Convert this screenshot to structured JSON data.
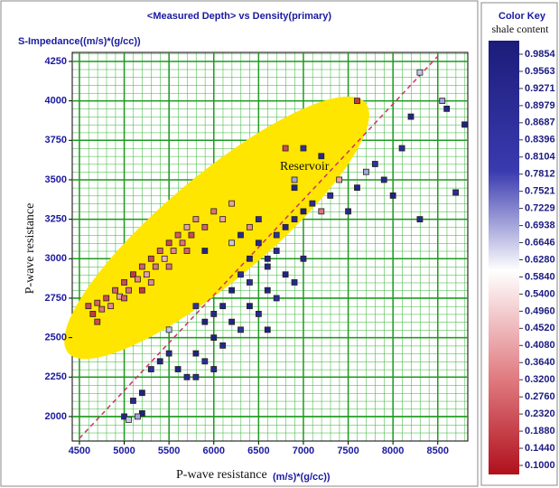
{
  "chart_data": {
    "type": "scatter",
    "title": "<Measured Depth> vs Density(primary)",
    "y_unit_label": "S-Impedance((m/s)*(g/cc))",
    "ylabel": "P-wave resistance",
    "xlabel": "P-wave resistance",
    "x_unit_label": "(m/s)*(g/cc))",
    "annotation": "Reservoir",
    "xlim": [
      4420,
      8835
    ],
    "ylim": [
      1845,
      4307
    ],
    "xticks": [
      4500,
      5000,
      5500,
      6000,
      6500,
      7000,
      7500,
      8000,
      8500
    ],
    "yticks": [
      2000,
      2250,
      2500,
      2750,
      3000,
      3250,
      3500,
      3750,
      4000,
      4250
    ],
    "grid": true,
    "x": [
      4600,
      4650,
      4700,
      4750,
      4800,
      4850,
      4900,
      4950,
      5000,
      5050,
      5100,
      5150,
      5200,
      5250,
      5300,
      5350,
      5400,
      5450,
      5500,
      5550,
      5600,
      5650,
      5700,
      5750,
      5800,
      5900,
      6000,
      6100,
      5200,
      5000,
      4700,
      5300,
      5500,
      5700,
      6200,
      6400,
      7200,
      6800,
      7600,
      7400,
      5600,
      5700,
      5800,
      5900,
      6000,
      6100,
      6200,
      6300,
      6400,
      6500,
      6600,
      6700,
      6800,
      6900,
      7000,
      6200,
      6300,
      6400,
      6500,
      6600,
      6700,
      6800,
      6900,
      7000,
      7100,
      6100,
      6000,
      5900,
      6400,
      6600,
      6700,
      5800,
      5500,
      5400,
      5300,
      5200,
      5100,
      5000,
      5200,
      7300,
      7500,
      7600,
      7800,
      7900,
      8000,
      8100,
      8200,
      8300,
      8600,
      8700,
      8800,
      7000,
      7200,
      6900,
      6500,
      6300,
      5900,
      6600,
      6000,
      5800,
      5050,
      5150,
      8300,
      8550,
      6900,
      5500,
      7700,
      6200
    ],
    "values": [
      2700,
      2650,
      2720,
      2680,
      2750,
      2700,
      2800,
      2760,
      2850,
      2800,
      2900,
      2870,
      2950,
      2900,
      3000,
      2950,
      3050,
      3000,
      3100,
      3050,
      3150,
      3100,
      3200,
      3150,
      3250,
      3200,
      3300,
      3250,
      2800,
      2750,
      2600,
      2850,
      2950,
      3050,
      3350,
      3200,
      3300,
      3700,
      4000,
      3500,
      2300,
      2250,
      2400,
      2350,
      2500,
      2450,
      2600,
      2550,
      2700,
      2650,
      2800,
      2750,
      2900,
      2850,
      3000,
      2800,
      2900,
      3000,
      3100,
      3000,
      3150,
      3200,
      3250,
      3300,
      3350,
      2700,
      2650,
      2600,
      2850,
      2950,
      3050,
      2700,
      2400,
      2350,
      2300,
      2150,
      2100,
      2000,
      2020,
      3400,
      3300,
      3450,
      3600,
      3500,
      3400,
      3700,
      3900,
      3250,
      3950,
      3420,
      3850,
      3700,
      3650,
      3450,
      3250,
      3150,
      3050,
      2550,
      2300,
      2250,
      1980,
      2000,
      4180,
      4000,
      3500,
      2550,
      3550,
      3100
    ],
    "color_values": [
      0.23,
      0.19,
      0.28,
      0.32,
      0.23,
      0.36,
      0.27,
      0.41,
      0.23,
      0.32,
      0.19,
      0.36,
      0.27,
      0.41,
      0.23,
      0.32,
      0.28,
      0.45,
      0.23,
      0.36,
      0.27,
      0.32,
      0.41,
      0.23,
      0.36,
      0.28,
      0.32,
      0.41,
      0.19,
      0.27,
      0.23,
      0.36,
      0.32,
      0.28,
      0.41,
      0.36,
      0.32,
      0.23,
      0.19,
      0.41,
      0.93,
      0.9,
      0.96,
      0.87,
      0.95,
      0.9,
      0.93,
      0.84,
      0.96,
      0.9,
      0.93,
      0.87,
      0.95,
      0.9,
      0.93,
      0.96,
      0.87,
      0.93,
      0.9,
      0.95,
      0.84,
      0.93,
      0.9,
      0.96,
      0.87,
      0.93,
      0.9,
      0.95,
      0.87,
      0.93,
      0.9,
      0.84,
      0.9,
      0.93,
      0.87,
      0.95,
      0.9,
      0.93,
      0.96,
      0.87,
      0.9,
      0.93,
      0.84,
      0.9,
      0.95,
      0.87,
      0.93,
      0.9,
      0.93,
      0.87,
      0.95,
      0.84,
      0.9,
      0.93,
      0.87,
      0.9,
      0.93,
      0.95,
      0.9,
      0.87,
      0.66,
      0.69,
      0.66,
      0.69,
      0.69,
      0.66,
      0.69,
      0.66
    ],
    "color_key": {
      "title": "Color Key",
      "label": "shale content",
      "ticks": [
        0.9854,
        0.9563,
        0.9271,
        0.8979,
        0.8687,
        0.8396,
        0.8104,
        0.7812,
        0.7521,
        0.7229,
        0.6938,
        0.6646,
        {
          "value": 0.628,
          "label": "0.6280"
        },
        {
          "value": 0.584,
          "label": "0.5840"
        },
        {
          "value": 0.54,
          "label": "0.5400"
        },
        {
          "value": 0.496,
          "label": "0.4960"
        },
        {
          "value": 0.452,
          "label": "0.4520"
        },
        {
          "value": 0.408,
          "label": "0.4080"
        },
        {
          "value": 0.364,
          "label": "0.3640"
        },
        {
          "value": 0.32,
          "label": "0.3200"
        },
        {
          "value": 0.276,
          "label": "0.2760"
        },
        {
          "value": 0.232,
          "label": "0.2320"
        },
        {
          "value": 0.188,
          "label": "0.1880"
        },
        {
          "value": 0.144,
          "label": "0.1440"
        },
        {
          "value": 0.1,
          "label": "0.1000"
        }
      ]
    }
  }
}
